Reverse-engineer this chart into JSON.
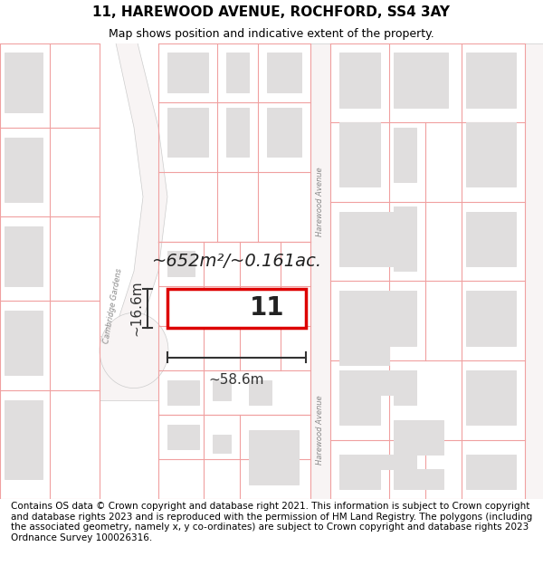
{
  "title": "11, HAREWOOD AVENUE, ROCHFORD, SS4 3AY",
  "subtitle": "Map shows position and indicative extent of the property.",
  "footer": "Contains OS data © Crown copyright and database right 2021. This information is subject to Crown copyright and database rights 2023 and is reproduced with the permission of HM Land Registry. The polygons (including the associated geometry, namely x, y co-ordinates) are subject to Crown copyright and database rights 2023 Ordnance Survey 100026316.",
  "map_bg": "#ffffff",
  "block_color": "#e0dede",
  "block_edge": "#e0dede",
  "plot_line_color": "#f0a0a0",
  "highlight_color": "#ffffff",
  "highlight_edge": "#dd0000",
  "road_color": "#ffffff",
  "road_edge": "#ddaaaa",
  "harewood_color": "#f8f4f4",
  "dim_color": "#333333",
  "label_color": "#888888",
  "area_text": "~652m²/~0.161ac.",
  "width_text": "~58.6m",
  "height_text": "~16.6m",
  "plot_number": "11",
  "title_fontsize": 11,
  "subtitle_fontsize": 9,
  "footer_fontsize": 7.5,
  "area_fontsize": 14,
  "dim_fontsize": 11,
  "plot_num_fontsize": 20
}
